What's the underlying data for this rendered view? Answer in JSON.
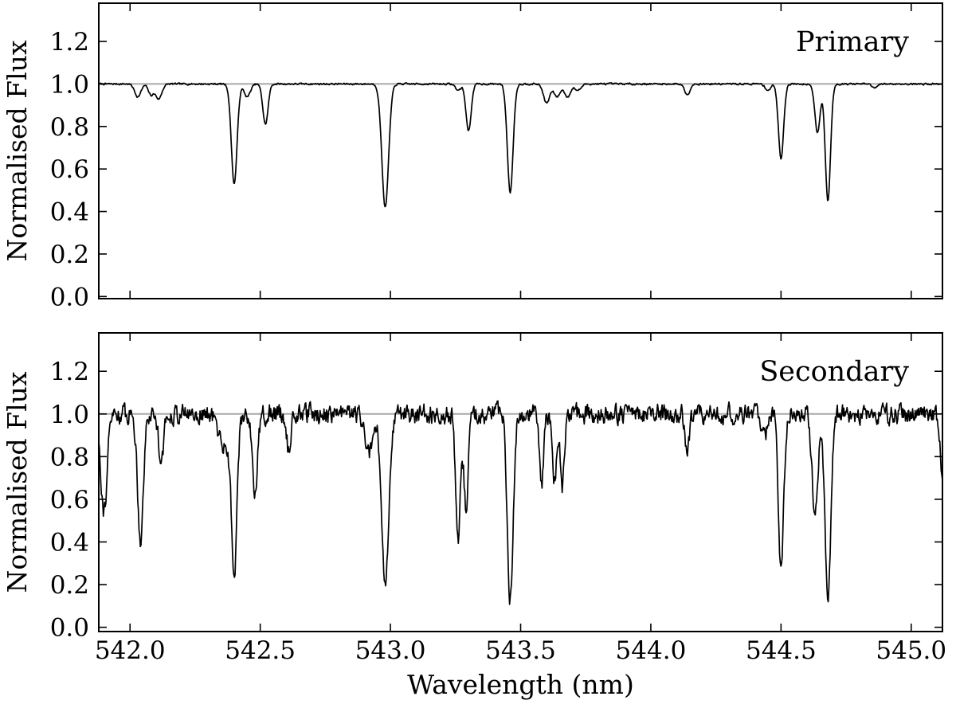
{
  "chart_data": [
    {
      "type": "line",
      "panel": "top",
      "label": "Primary",
      "xlabel": "",
      "ylabel": "Normalised Flux",
      "xlim": [
        541.88,
        545.12
      ],
      "ylim": [
        -0.01,
        1.38
      ],
      "xticks": [
        542.0,
        542.5,
        543.0,
        543.5,
        544.0,
        544.5,
        545.0
      ],
      "xtick_labels": [],
      "yticks": [
        0.0,
        0.2,
        0.4,
        0.6,
        0.8,
        1.0,
        1.2
      ],
      "ytick_labels": [
        "0.0",
        "0.2",
        "0.4",
        "0.6",
        "0.8",
        "1.0",
        "1.2"
      ],
      "reference_line": 1.0,
      "noise": 0.004,
      "lines": [
        [
          542.03,
          0.06,
          0.012
        ],
        [
          542.08,
          0.05,
          0.01
        ],
        [
          542.11,
          0.07,
          0.012
        ],
        [
          542.4,
          0.47,
          0.011
        ],
        [
          542.45,
          0.06,
          0.012
        ],
        [
          542.52,
          0.19,
          0.01
        ],
        [
          542.98,
          0.58,
          0.013
        ],
        [
          543.26,
          0.03,
          0.01
        ],
        [
          543.3,
          0.22,
          0.01
        ],
        [
          543.46,
          0.51,
          0.011
        ],
        [
          543.6,
          0.09,
          0.012
        ],
        [
          543.64,
          0.06,
          0.012
        ],
        [
          543.68,
          0.06,
          0.012
        ],
        [
          543.72,
          0.03,
          0.012
        ],
        [
          544.14,
          0.05,
          0.01
        ],
        [
          544.45,
          0.03,
          0.01
        ],
        [
          544.5,
          0.35,
          0.01
        ],
        [
          544.64,
          0.23,
          0.01
        ],
        [
          544.68,
          0.55,
          0.01
        ],
        [
          544.86,
          0.02,
          0.01
        ]
      ]
    },
    {
      "type": "line",
      "panel": "bottom",
      "label": "Secondary",
      "xlabel": "Wavelength (nm)",
      "ylabel": "Normalised Flux",
      "xlim": [
        541.88,
        545.12
      ],
      "ylim": [
        -0.02,
        1.38
      ],
      "xticks": [
        542.0,
        542.5,
        543.0,
        543.5,
        544.0,
        544.5,
        545.0
      ],
      "xtick_labels": [
        "542.0",
        "542.5",
        "543.0",
        "543.5",
        "544.0",
        "544.5",
        "545.0"
      ],
      "yticks": [
        0.0,
        0.2,
        0.4,
        0.6,
        0.8,
        1.0,
        1.2
      ],
      "ytick_labels": [
        "0.0",
        "0.2",
        "0.4",
        "0.6",
        "0.8",
        "1.0",
        "1.2"
      ],
      "reference_line": 1.0,
      "noise": 0.045,
      "lines": [
        [
          541.9,
          0.45,
          0.012
        ],
        [
          542.04,
          0.58,
          0.011
        ],
        [
          542.12,
          0.2,
          0.01
        ],
        [
          542.36,
          0.15,
          0.02
        ],
        [
          542.4,
          0.72,
          0.011
        ],
        [
          542.48,
          0.36,
          0.01
        ],
        [
          542.61,
          0.18,
          0.008
        ],
        [
          542.92,
          0.18,
          0.018
        ],
        [
          542.98,
          0.83,
          0.013
        ],
        [
          543.26,
          0.6,
          0.009
        ],
        [
          543.29,
          0.44,
          0.008
        ],
        [
          543.46,
          0.86,
          0.011
        ],
        [
          543.58,
          0.35,
          0.008
        ],
        [
          543.63,
          0.3,
          0.008
        ],
        [
          543.66,
          0.35,
          0.008
        ],
        [
          544.14,
          0.18,
          0.008
        ],
        [
          544.44,
          0.1,
          0.01
        ],
        [
          544.5,
          0.72,
          0.01
        ],
        [
          544.63,
          0.45,
          0.011
        ],
        [
          544.68,
          0.9,
          0.011
        ],
        [
          545.12,
          0.27,
          0.01
        ]
      ]
    }
  ]
}
